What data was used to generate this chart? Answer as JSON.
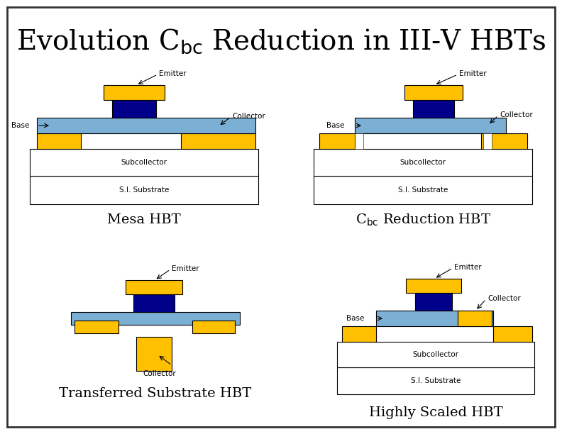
{
  "title_main": "Evolution C",
  "title_sub": "bc",
  "title_rest": " Reduction in III-V HBTs",
  "title_fontsize": 28,
  "bg_color": "#ffffff",
  "gold": "#FFC000",
  "dark_blue": "#00008B",
  "light_blue": "#7BAFD4",
  "white": "#FFFFFF",
  "black": "#000000",
  "anno_fontsize": 7.5,
  "caption_fontsize": 14
}
